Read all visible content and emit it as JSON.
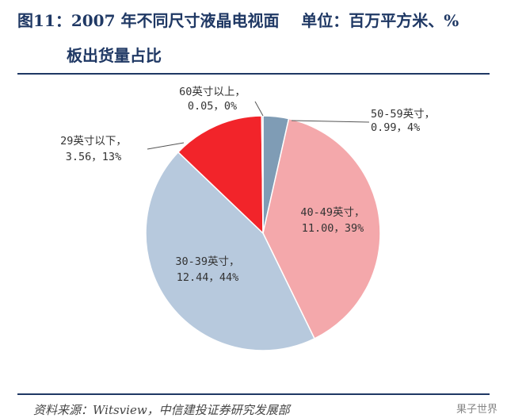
{
  "title": {
    "line1": "图11：2007 年不同尺寸液晶电视面    单位：百万平方米、%",
    "line2": "板出货量占比"
  },
  "source": "资料来源：Witsview，中信建投证券研究发展部",
  "watermark": "果子世界",
  "chart_data": {
    "type": "pie",
    "title": "图11：2007 年不同尺寸液晶电视面板出货量占比",
    "unit": "单位：百万平方米、%",
    "start": "12 o'clock",
    "direction": "clockwise",
    "slices": [
      {
        "label": "50-59英寸",
        "value": 0.99,
        "percent": "4%",
        "color": "#7f9cb5",
        "display": "0.99，4%"
      },
      {
        "label": "40-49英寸",
        "value": 11.0,
        "percent": "39%",
        "color": "#f4a8ab",
        "display": "11.00，39%"
      },
      {
        "label": "30-39英寸",
        "value": 12.44,
        "percent": "44%",
        "color": "#b7c9dd",
        "display": "12.44，44%"
      },
      {
        "label": "29英寸以下",
        "value": 3.56,
        "percent": "13%",
        "color": "#f2242a",
        "display": "3.56，13%"
      },
      {
        "label": "60英寸以上",
        "value": 0.05,
        "percent": "0%",
        "color": "#3b63a1",
        "display": "0.05，0%"
      }
    ]
  }
}
